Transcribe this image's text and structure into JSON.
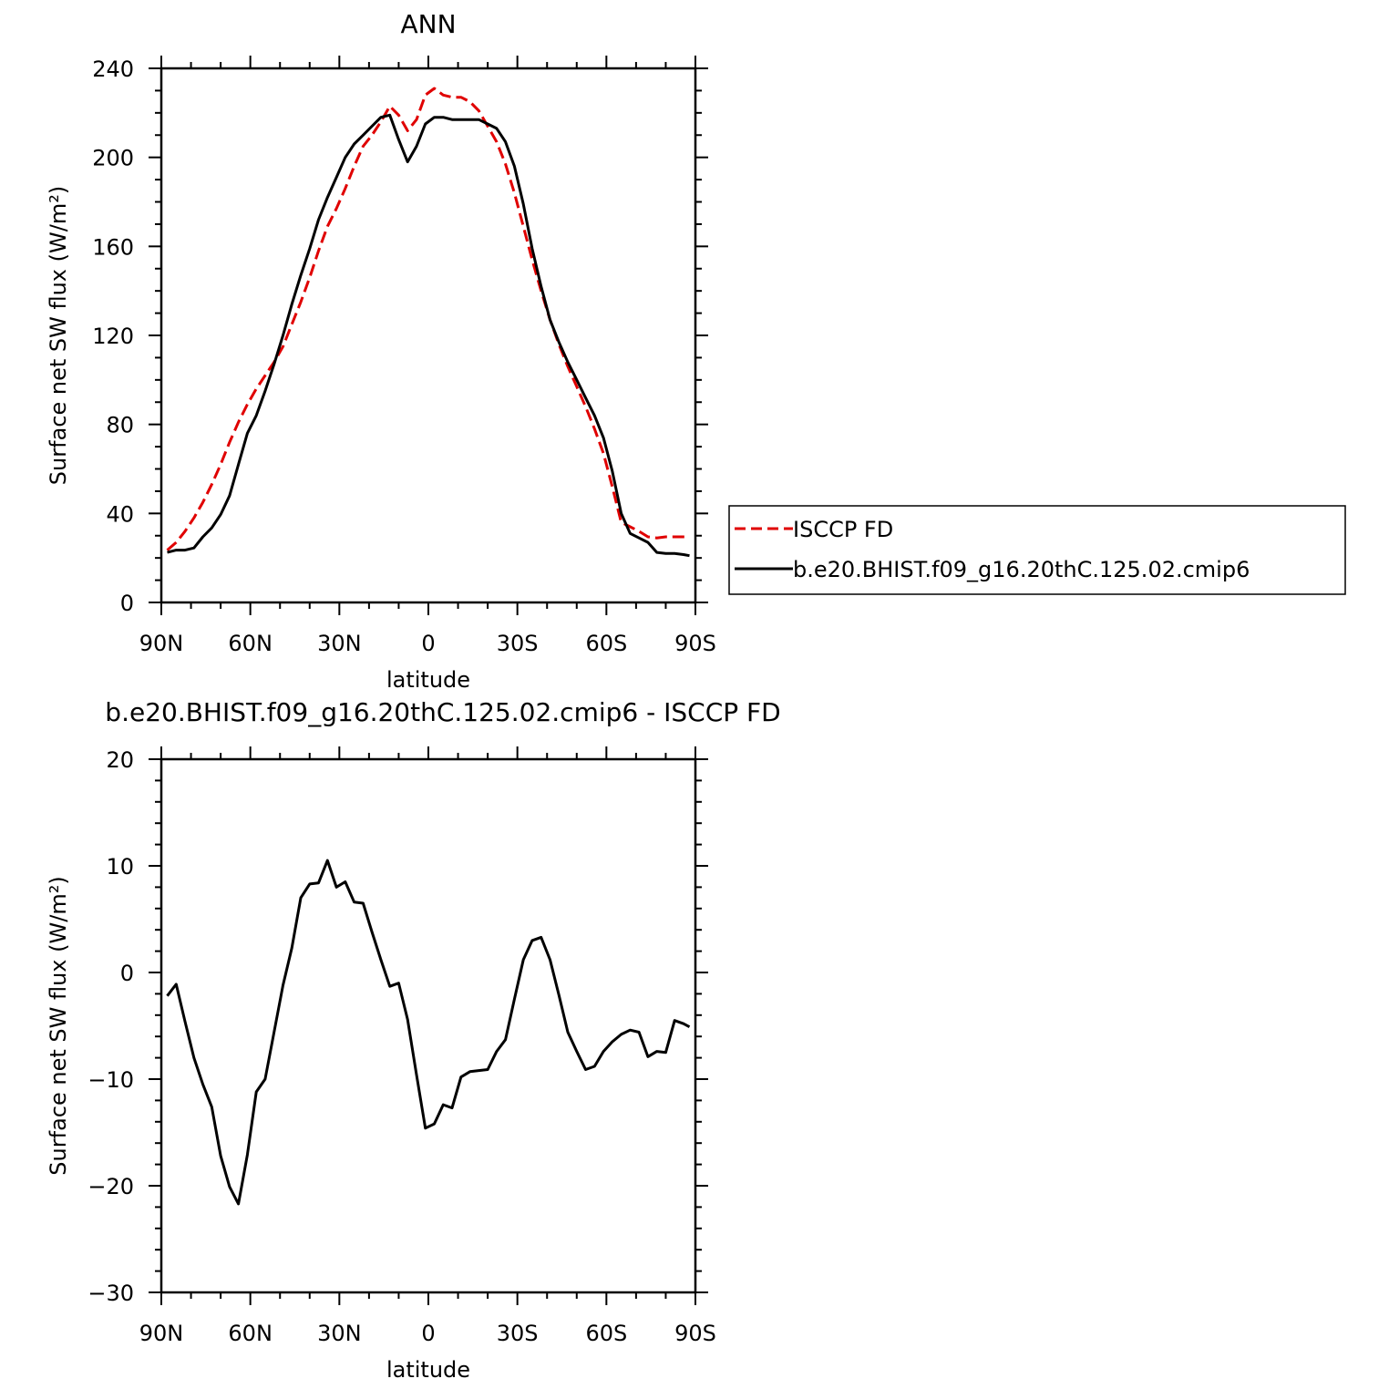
{
  "chart_data": [
    {
      "type": "line",
      "title": "ANN",
      "xlabel": "latitude",
      "ylabel": "Surface net SW flux (W/m²)",
      "xlim": [
        90,
        -90
      ],
      "ylim": [
        0,
        240
      ],
      "xticks": [
        90,
        60,
        30,
        0,
        -30,
        -60,
        -90
      ],
      "xtick_labels": [
        "90N",
        "60N",
        "30N",
        "0",
        "30S",
        "60S",
        "90S"
      ],
      "yticks": [
        0,
        40,
        80,
        120,
        160,
        200,
        240
      ],
      "ytick_labels": [
        "0",
        "40",
        "80",
        "120",
        "160",
        "200",
        "240"
      ],
      "grid": false,
      "legend_position": "right",
      "series": [
        {
          "name": "ISCCP FD",
          "color": "#e00000",
          "dash": "dashed",
          "x": [
            88,
            85,
            82,
            79,
            76,
            73,
            70,
            67,
            64,
            61,
            58,
            55,
            52,
            49,
            46,
            43,
            40,
            37,
            34,
            31,
            28,
            25,
            22,
            19,
            16,
            13,
            10,
            7,
            4,
            1,
            -2,
            -5,
            -8,
            -11,
            -14,
            -17,
            -20,
            -23,
            -26,
            -29,
            -32,
            -35,
            -38,
            -41,
            -44,
            -47,
            -50,
            -53,
            -56,
            -59,
            -62,
            -65,
            -68,
            -71,
            -74,
            -77,
            -80,
            -83,
            -86,
            -88
          ],
          "y": [
            23.5,
            27,
            32,
            38,
            45,
            53,
            62,
            72,
            81,
            89,
            96,
            102,
            108,
            115,
            125,
            135,
            146,
            158,
            169,
            177,
            186,
            196,
            205,
            210,
            216,
            223,
            219,
            212,
            217,
            228,
            231,
            228,
            227,
            227,
            225,
            221,
            214,
            207,
            197,
            184,
            169,
            154,
            140,
            127,
            116,
            106,
            97,
            88,
            78,
            67,
            52,
            36,
            34,
            32,
            29.5,
            29,
            29.5,
            29.5,
            29.5,
            29.5
          ]
        },
        {
          "name": "b.e20.BHIST.f09_g16.20thC.125.02.cmip6",
          "color": "#000000",
          "dash": "solid",
          "x": [
            88,
            85,
            82,
            79,
            76,
            73,
            70,
            67,
            64,
            61,
            58,
            55,
            52,
            49,
            46,
            43,
            40,
            37,
            34,
            31,
            28,
            25,
            22,
            19,
            16,
            13,
            10,
            7,
            4,
            1,
            -2,
            -5,
            -8,
            -11,
            -14,
            -17,
            -20,
            -23,
            -26,
            -29,
            -32,
            -35,
            -38,
            -41,
            -44,
            -47,
            -50,
            -53,
            -56,
            -59,
            -62,
            -65,
            -68,
            -71,
            -74,
            -77,
            -80,
            -83,
            -86,
            -88
          ],
          "y": [
            22.5,
            23.5,
            23.5,
            24.5,
            29.5,
            33.5,
            39.5,
            48,
            62,
            76,
            84,
            95,
            107,
            120,
            134,
            147,
            159,
            172,
            182,
            191,
            200,
            206,
            210,
            214,
            218,
            219,
            208,
            198,
            205,
            215,
            218,
            218,
            217,
            217,
            217,
            217,
            215,
            213,
            207,
            196,
            179,
            159,
            142,
            127,
            117,
            108,
            100,
            92,
            84,
            74,
            59,
            40,
            31,
            29,
            27,
            22.5,
            22,
            22,
            21.5,
            21
          ]
        }
      ]
    },
    {
      "type": "line",
      "title": "b.e20.BHIST.f09_g16.20thC.125.02.cmip6 - ISCCP FD",
      "xlabel": "latitude",
      "ylabel": "Surface net SW flux (W/m²)",
      "xlim": [
        90,
        -90
      ],
      "ylim": [
        -30,
        20
      ],
      "xticks": [
        90,
        60,
        30,
        0,
        -30,
        -60,
        -90
      ],
      "xtick_labels": [
        "90N",
        "60N",
        "30N",
        "0",
        "30S",
        "60S",
        "90S"
      ],
      "yticks": [
        -30,
        -20,
        -10,
        0,
        10,
        20
      ],
      "ytick_labels": [
        "−30",
        "−20",
        "−10",
        "0",
        "10",
        "20"
      ],
      "grid": false,
      "series": [
        {
          "color": "#000000",
          "dash": "solid",
          "x": [
            88,
            85,
            82,
            79,
            76,
            73,
            70,
            67,
            64,
            61,
            58,
            55,
            52,
            49,
            46,
            43,
            40,
            37,
            34,
            31,
            28,
            25,
            22,
            19,
            16,
            13,
            10,
            7,
            4,
            1,
            -2,
            -5,
            -8,
            -11,
            -14,
            -17,
            -20,
            -23,
            -26,
            -29,
            -32,
            -35,
            -38,
            -41,
            -44,
            -47,
            -50,
            -53,
            -56,
            -59,
            -62,
            -65,
            -68,
            -71,
            -74,
            -77,
            -80,
            -83,
            -86,
            -88
          ],
          "y": [
            -2.2,
            -1.1,
            -4.6,
            -8,
            -10.5,
            -12.6,
            -17.2,
            -20.1,
            -21.7,
            -17.1,
            -11.2,
            -10,
            -5.6,
            -1.2,
            2.3,
            7,
            8.3,
            8.4,
            10.5,
            8,
            8.5,
            6.6,
            6.5,
            3.8,
            1.2,
            -1.3,
            -1,
            -4.4,
            -9.6,
            -14.6,
            -14.2,
            -12.4,
            -12.7,
            -9.8,
            -9.3,
            -9.2,
            -9.1,
            -7.4,
            -6.3,
            -2.5,
            1.2,
            3,
            3.3,
            1.2,
            -2.1,
            -5.6,
            -7.4,
            -9.1,
            -8.8,
            -7.4,
            -6.5,
            -5.8,
            -5.4,
            -5.6,
            -7.9,
            -7.4,
            -7.5,
            -4.5,
            -4.8,
            -5.1
          ]
        }
      ]
    }
  ],
  "legend": {
    "items": [
      "ISCCP FD",
      "b.e20.BHIST.f09_g16.20thC.125.02.cmip6"
    ]
  }
}
